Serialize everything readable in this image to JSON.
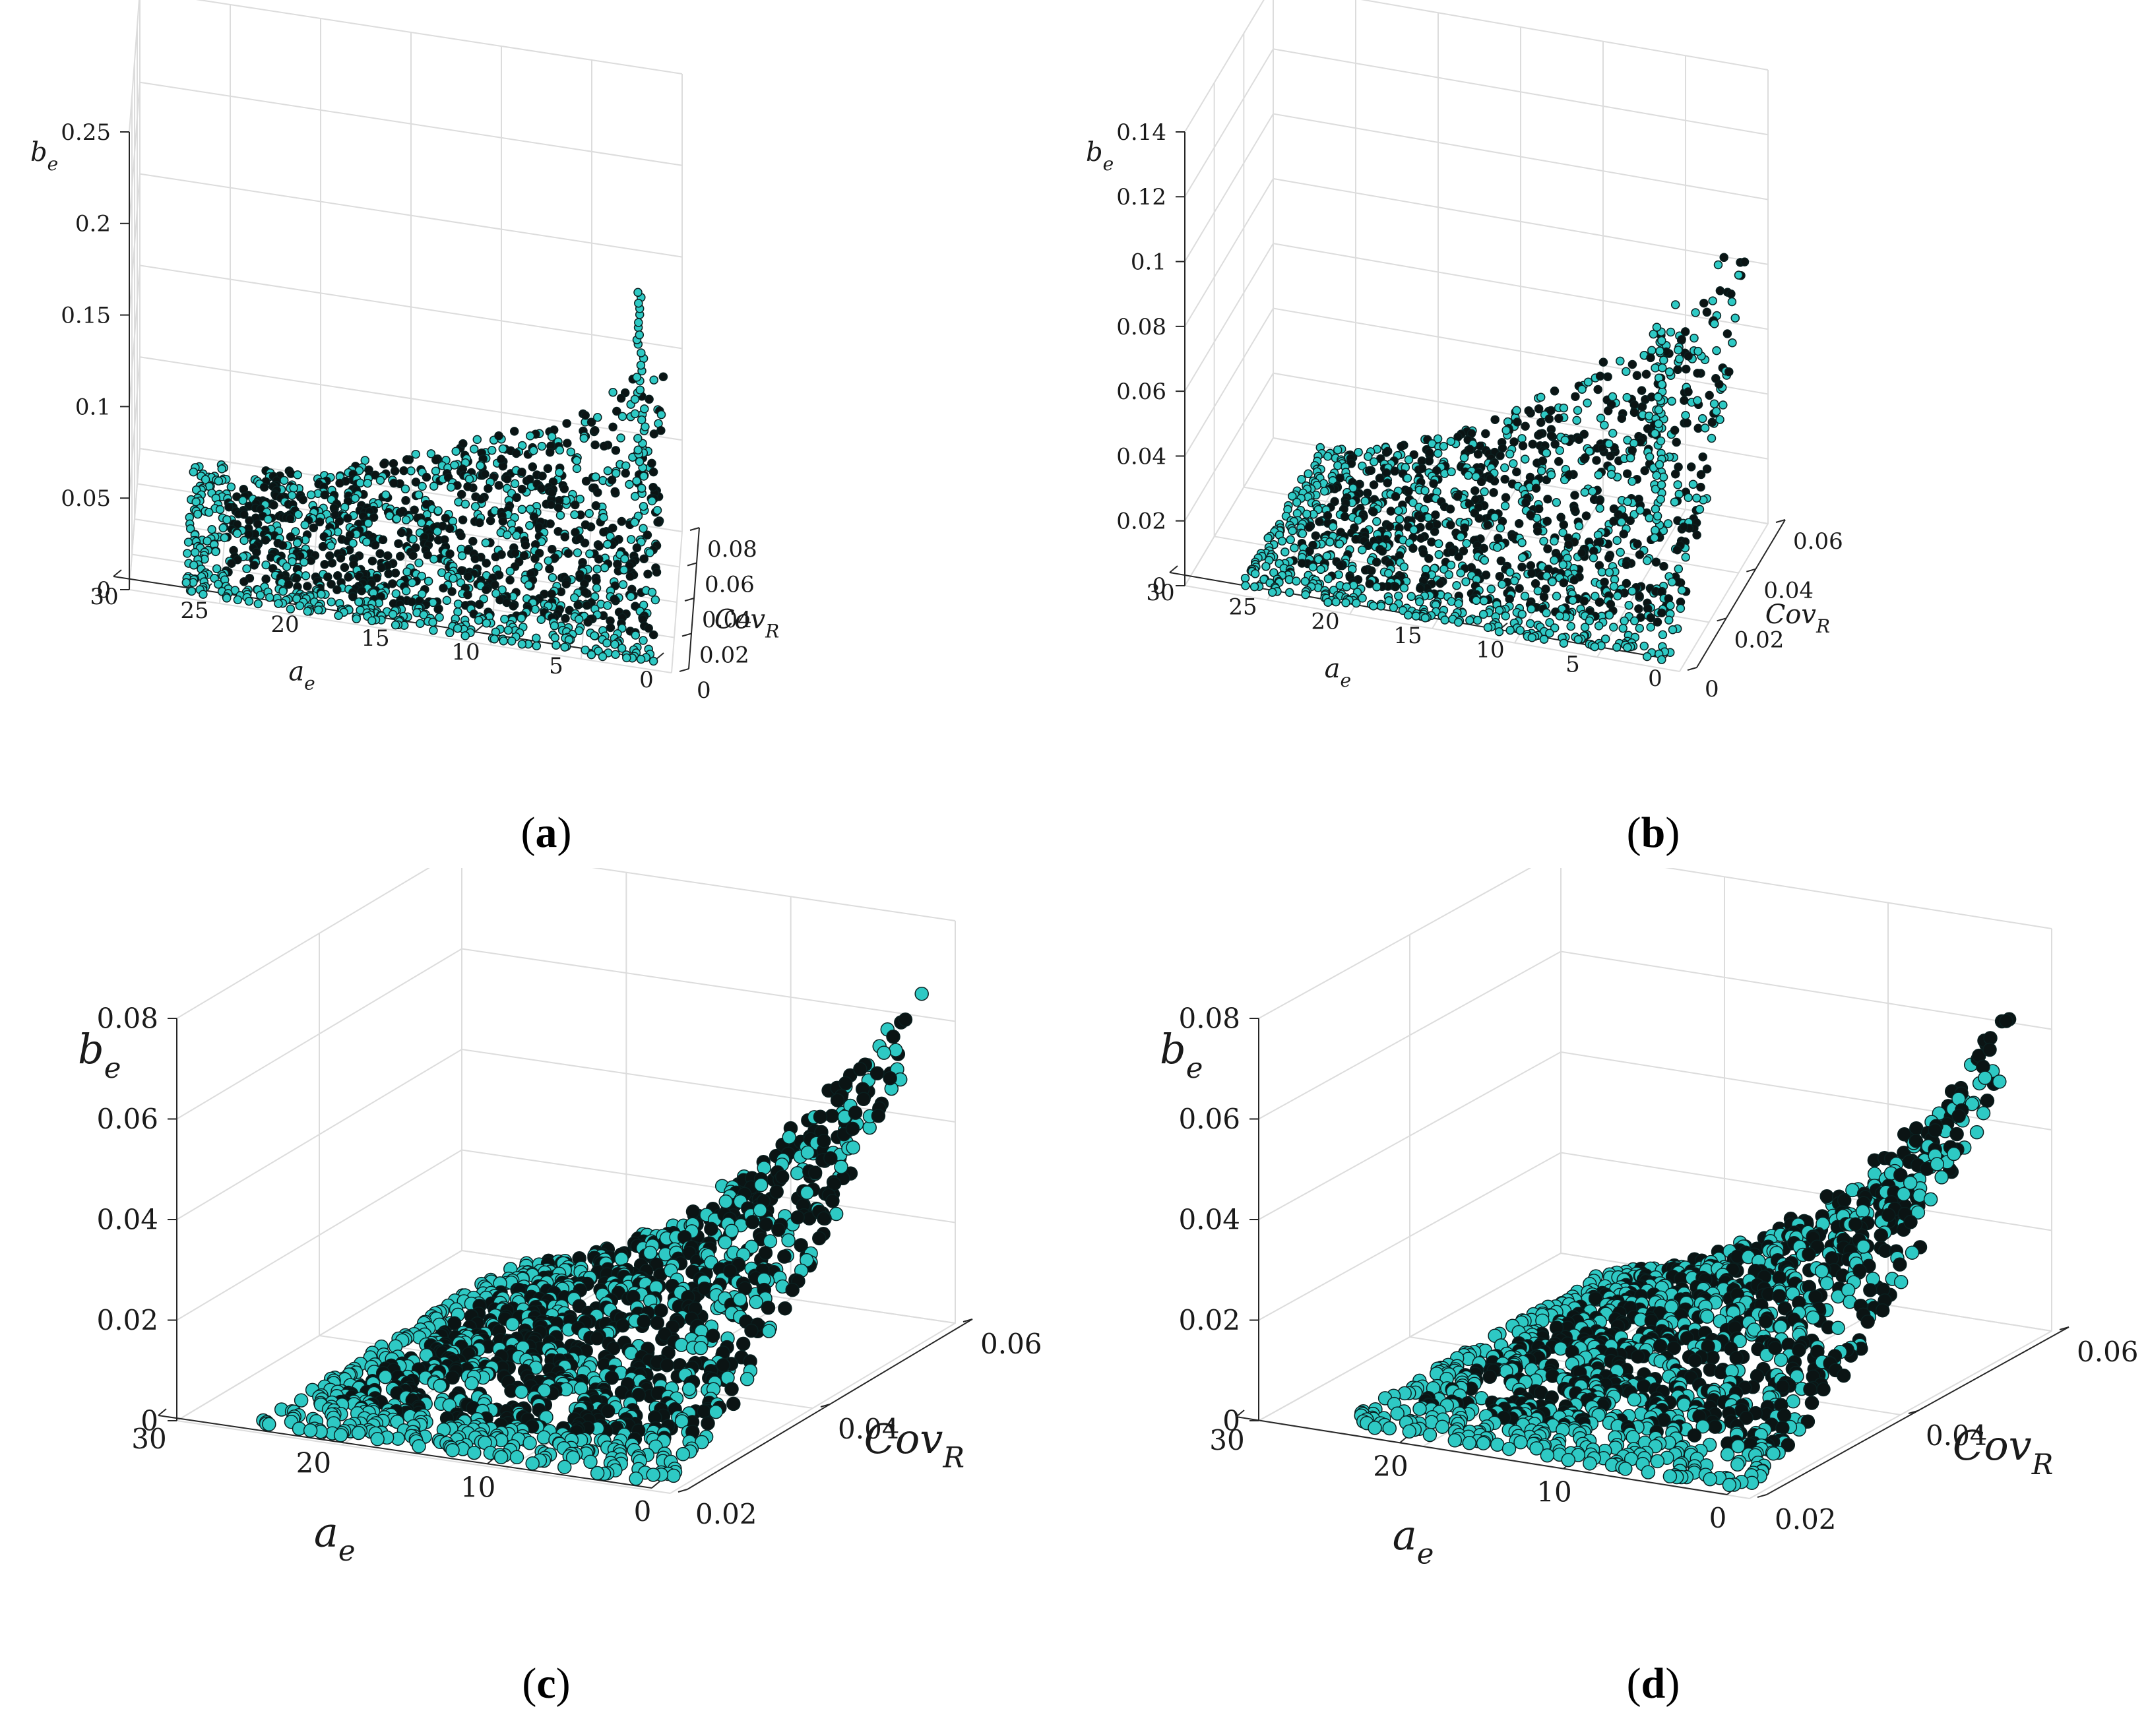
{
  "colors": {
    "marker_fill": "#2ec9c4",
    "marker_edge": "#0a1f1f",
    "dense": "#0b1414",
    "grid": "#dcdcdc",
    "axis": "#262626"
  },
  "chart_data": [
    {
      "id": "a",
      "type": "scatter3d",
      "caption": "a",
      "zlabel": "b",
      "zlabel_sub": "e",
      "xlabel": "a",
      "xlabel_sub": "e",
      "ylabel": "Cov",
      "ylabel_sub": "R",
      "xlim": [
        0,
        30
      ],
      "ylim": [
        0,
        0.08
      ],
      "zlim": [
        0,
        0.25
      ],
      "z_ticks": [
        "0",
        "0.05",
        "0.1",
        "0.15",
        "0.2",
        "0.25"
      ],
      "x_ticks": [
        "30",
        "25",
        "20",
        "15",
        "10",
        "5",
        "0"
      ],
      "y_ticks": [
        "0",
        "0.02",
        "0.04",
        "0.06",
        "0.08"
      ],
      "cloud": {
        "a_range": [
          1,
          27
        ],
        "cov_range": [
          0.003,
          0.075
        ],
        "b_min": 0.0,
        "b_max": 0.1,
        "spike": [
          {
            "a": 1.5,
            "cov": 0.005,
            "b": 0.2
          }
        ]
      }
    },
    {
      "id": "b",
      "type": "scatter3d",
      "caption": "b",
      "zlabel": "b",
      "zlabel_sub": "e",
      "xlabel": "a",
      "xlabel_sub": "e",
      "ylabel": "Cov",
      "ylabel_sub": "R",
      "xlim": [
        0,
        30
      ],
      "ylim": [
        0,
        0.06
      ],
      "zlim": [
        0,
        0.14
      ],
      "z_ticks": [
        "0",
        "0.02",
        "0.04",
        "0.06",
        "0.08",
        "0.1",
        "0.12",
        "0.14"
      ],
      "x_ticks": [
        "30",
        "25",
        "20",
        "15",
        "10",
        "5",
        "0"
      ],
      "y_ticks": [
        "0",
        "0.02",
        "0.04",
        "0.06"
      ],
      "cloud": {
        "a_range": [
          1,
          27
        ],
        "cov_range": [
          0.003,
          0.058
        ],
        "b_min": 0.0,
        "b_max": 0.095,
        "spike": [
          {
            "a": 1.5,
            "cov": 0.005,
            "b": 0.1
          }
        ]
      }
    },
    {
      "id": "c",
      "type": "scatter3d",
      "caption": "c",
      "zlabel": "b",
      "zlabel_sub": "e",
      "xlabel": "a",
      "xlabel_sub": "e",
      "ylabel": "Cov",
      "ylabel_sub": "R",
      "xlim": [
        0,
        30
      ],
      "ylim": [
        0.015,
        0.06
      ],
      "zlim": [
        0,
        0.08
      ],
      "z_ticks": [
        "0",
        "0.02",
        "0.04",
        "0.06",
        "0.08"
      ],
      "x_ticks": [
        "30",
        "20",
        "10",
        "0"
      ],
      "y_ticks": [
        "0.02",
        "0.04",
        "0.06"
      ],
      "cloud": {
        "a_range": [
          1,
          26
        ],
        "cov_range": [
          0.017,
          0.058
        ],
        "b_min": 0.0,
        "b_max": 0.075,
        "spike": []
      }
    },
    {
      "id": "d",
      "type": "scatter3d",
      "caption": "d",
      "zlabel": "b",
      "zlabel_sub": "e",
      "xlabel": "a",
      "xlabel_sub": "e",
      "ylabel": "Cov",
      "ylabel_sub": "R",
      "xlim": [
        0,
        30
      ],
      "ylim": [
        0.015,
        0.06
      ],
      "zlim": [
        0,
        0.08
      ],
      "z_ticks": [
        "0",
        "0.02",
        "0.04",
        "0.06",
        "0.08"
      ],
      "x_ticks": [
        "30",
        "20",
        "10",
        "0"
      ],
      "y_ticks": [
        "0.02",
        "0.04",
        "0.06"
      ],
      "cloud": {
        "a_range": [
          1,
          26
        ],
        "cov_range": [
          0.017,
          0.058
        ],
        "b_min": 0.0,
        "b_max": 0.07,
        "spike": []
      }
    }
  ]
}
